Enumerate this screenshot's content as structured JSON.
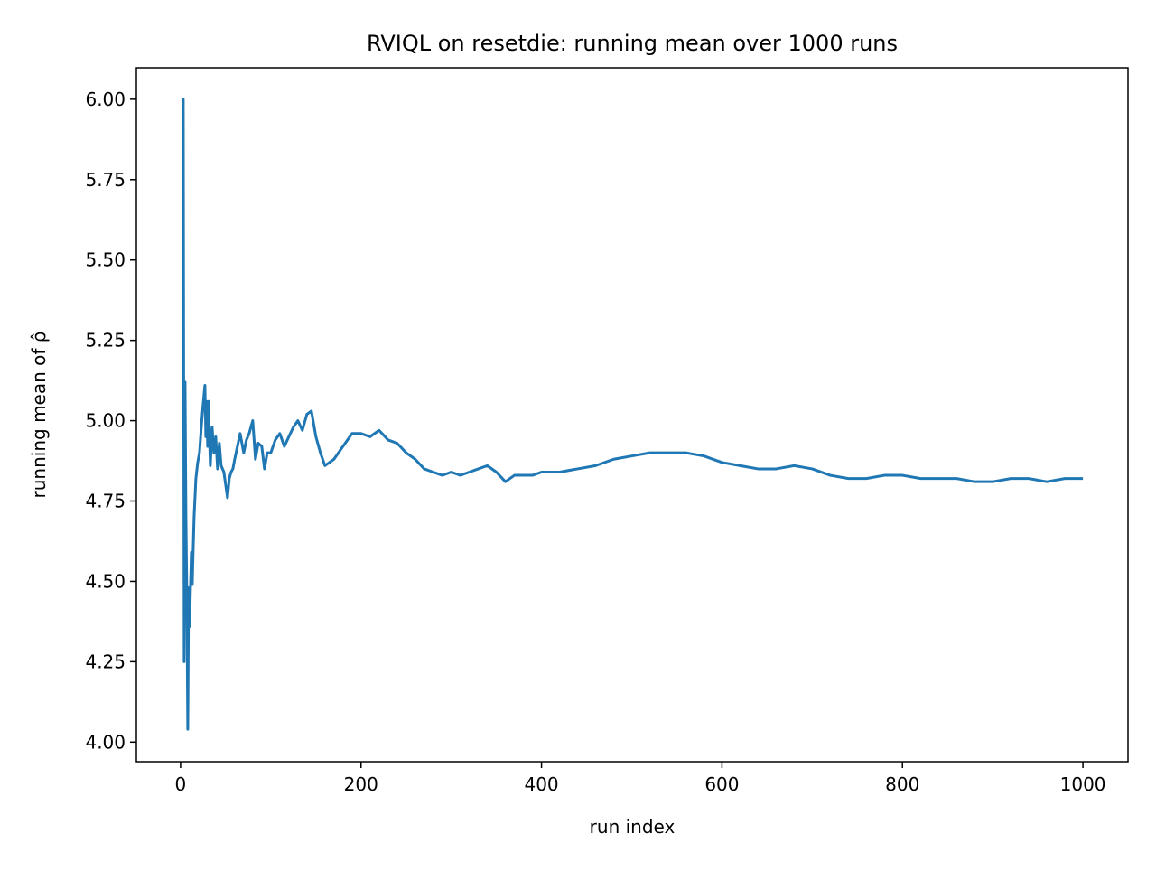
{
  "chart_data": {
    "type": "line",
    "title": "RVIQL on resetdie: running mean over 1000 runs",
    "x_label": "run index",
    "y_label": "running mean of ρ̂",
    "x": [
      1,
      3,
      4,
      5,
      6,
      7,
      8,
      9,
      10,
      11,
      12,
      13,
      14,
      15,
      17,
      19,
      21,
      23,
      25,
      27,
      28,
      29,
      30,
      31,
      32,
      33,
      35,
      37,
      39,
      41,
      43,
      45,
      48,
      50,
      52,
      54,
      56,
      58,
      60,
      63,
      66,
      70,
      73,
      76,
      80,
      83,
      86,
      90,
      93,
      96,
      100,
      105,
      110,
      115,
      120,
      125,
      130,
      135,
      140,
      145,
      150,
      155,
      160,
      165,
      170,
      175,
      180,
      190,
      200,
      210,
      220,
      230,
      240,
      250,
      260,
      270,
      280,
      290,
      300,
      310,
      320,
      330,
      340,
      350,
      360,
      370,
      380,
      390,
      400,
      420,
      440,
      460,
      480,
      500,
      520,
      540,
      560,
      580,
      600,
      620,
      640,
      660,
      680,
      700,
      720,
      740,
      760,
      780,
      800,
      820,
      840,
      860,
      880,
      900,
      920,
      940,
      960,
      980,
      1000
    ],
    "series": [
      {
        "color": "#1f77b4",
        "values": [
          6.0,
          6.0,
          4.25,
          5.12,
          4.7,
          4.45,
          4.04,
          4.48,
          4.36,
          4.48,
          4.59,
          4.49,
          4.6,
          4.7,
          4.82,
          4.87,
          4.9,
          4.98,
          5.05,
          5.11,
          4.95,
          5.06,
          4.92,
          5.06,
          4.95,
          4.86,
          4.98,
          4.9,
          4.95,
          4.85,
          4.93,
          4.86,
          4.84,
          4.8,
          4.76,
          4.82,
          4.84,
          4.85,
          4.88,
          4.92,
          4.96,
          4.9,
          4.94,
          4.96,
          5.0,
          4.88,
          4.93,
          4.92,
          4.85,
          4.9,
          4.9,
          4.94,
          4.96,
          4.92,
          4.95,
          4.98,
          5.0,
          4.97,
          5.02,
          5.03,
          4.95,
          4.9,
          4.86,
          4.87,
          4.88,
          4.9,
          4.92,
          4.96,
          4.96,
          4.95,
          4.97,
          4.94,
          4.93,
          4.9,
          4.88,
          4.85,
          4.84,
          4.83,
          4.84,
          4.83,
          4.84,
          4.85,
          4.86,
          4.84,
          4.81,
          4.83,
          4.83,
          4.83,
          4.84,
          4.84,
          4.85,
          4.86,
          4.88,
          4.89,
          4.9,
          4.9,
          4.9,
          4.89,
          4.87,
          4.86,
          4.85,
          4.85,
          4.86,
          4.85,
          4.83,
          4.82,
          4.82,
          4.83,
          4.83,
          4.82,
          4.82,
          4.82,
          4.81,
          4.81,
          4.82,
          4.82,
          4.81,
          4.82,
          4.82
        ]
      }
    ],
    "xlim": [
      -48.95,
      1049.95
    ],
    "ylim": [
      3.939,
      6.098
    ],
    "xticks": [
      0,
      200,
      400,
      600,
      800,
      1000
    ],
    "yticks": [
      {
        "value": 4,
        "label": "4.00"
      },
      4.25,
      {
        "value": 4.5,
        "label": "4.50"
      },
      4.75,
      {
        "value": 5,
        "label": "5.00"
      },
      5.25,
      {
        "value": 5.5,
        "label": "5.50"
      },
      5.75,
      {
        "value": 6,
        "label": "6.00"
      }
    ]
  }
}
